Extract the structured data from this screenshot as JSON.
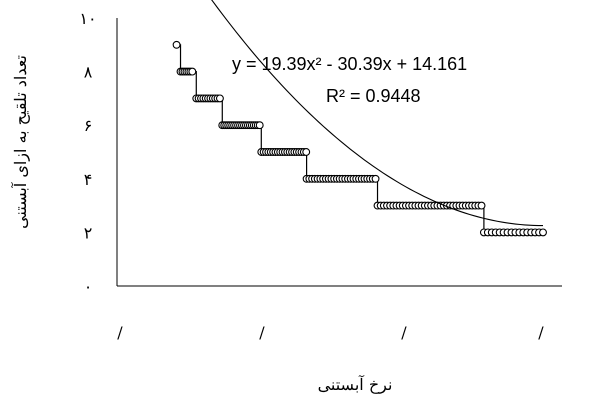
{
  "chart_data": {
    "type": "scatter",
    "title": "",
    "xlabel": "نرخ آبستنی",
    "ylabel": "تعداد تلقیح به ازای آبستنی",
    "ylim": [
      0,
      10
    ],
    "xlim": [
      0,
      1
    ],
    "y_ticks": [
      "۰",
      "۲",
      "۴",
      "۶",
      "۸",
      "۱۰"
    ],
    "y_tick_values": [
      0,
      2,
      4,
      6,
      8,
      10
    ],
    "x_ticks": [
      "/",
      "/",
      "/",
      "/"
    ],
    "x_tick_values": [
      0,
      0.333,
      0.667,
      1.0
    ],
    "grid": false,
    "legend": "none",
    "trendline": {
      "type": "polynomial",
      "coefficients": [
        19.39,
        -30.39,
        14.161
      ],
      "equation_text": "y = 19.39x² - 30.39x + 14.161",
      "r2_text": "R² = 0.9448"
    },
    "series": [
      {
        "marker": "circle-open",
        "line": "step",
        "color": "#000000",
        "points": [
          [
            0.07,
            9.0
          ],
          [
            0.08,
            8.0
          ],
          [
            0.085,
            8.0
          ],
          [
            0.09,
            8.0
          ],
          [
            0.095,
            8.0
          ],
          [
            0.1,
            8.0
          ],
          [
            0.105,
            8.0
          ],
          [
            0.11,
            8.0
          ],
          [
            0.12,
            7.0
          ],
          [
            0.126,
            7.0
          ],
          [
            0.132,
            7.0
          ],
          [
            0.138,
            7.0
          ],
          [
            0.144,
            7.0
          ],
          [
            0.15,
            7.0
          ],
          [
            0.156,
            7.0
          ],
          [
            0.162,
            7.0
          ],
          [
            0.168,
            7.0
          ],
          [
            0.174,
            7.0
          ],
          [
            0.18,
            7.0
          ],
          [
            0.186,
            6.0
          ],
          [
            0.191,
            6.0
          ],
          [
            0.196,
            6.0
          ],
          [
            0.201,
            6.0
          ],
          [
            0.206,
            6.0
          ],
          [
            0.211,
            6.0
          ],
          [
            0.216,
            6.0
          ],
          [
            0.221,
            6.0
          ],
          [
            0.226,
            6.0
          ],
          [
            0.231,
            6.0
          ],
          [
            0.236,
            6.0
          ],
          [
            0.241,
            6.0
          ],
          [
            0.246,
            6.0
          ],
          [
            0.251,
            6.0
          ],
          [
            0.256,
            6.0
          ],
          [
            0.261,
            6.0
          ],
          [
            0.266,
            6.0
          ],
          [
            0.271,
            6.0
          ],
          [
            0.276,
            6.0
          ],
          [
            0.281,
            6.0
          ],
          [
            0.285,
            5.0
          ],
          [
            0.291,
            5.0
          ],
          [
            0.297,
            5.0
          ],
          [
            0.303,
            5.0
          ],
          [
            0.309,
            5.0
          ],
          [
            0.315,
            5.0
          ],
          [
            0.321,
            5.0
          ],
          [
            0.327,
            5.0
          ],
          [
            0.333,
            5.0
          ],
          [
            0.339,
            5.0
          ],
          [
            0.345,
            5.0
          ],
          [
            0.351,
            5.0
          ],
          [
            0.357,
            5.0
          ],
          [
            0.363,
            5.0
          ],
          [
            0.369,
            5.0
          ],
          [
            0.375,
            5.0
          ],
          [
            0.381,
            5.0
          ],
          [
            0.387,
            5.0
          ],
          [
            0.393,
            5.0
          ],
          [
            0.399,
            5.0
          ],
          [
            0.4,
            4.0
          ],
          [
            0.407,
            4.0
          ],
          [
            0.414,
            4.0
          ],
          [
            0.421,
            4.0
          ],
          [
            0.428,
            4.0
          ],
          [
            0.435,
            4.0
          ],
          [
            0.442,
            4.0
          ],
          [
            0.449,
            4.0
          ],
          [
            0.456,
            4.0
          ],
          [
            0.463,
            4.0
          ],
          [
            0.47,
            4.0
          ],
          [
            0.477,
            4.0
          ],
          [
            0.484,
            4.0
          ],
          [
            0.491,
            4.0
          ],
          [
            0.498,
            4.0
          ],
          [
            0.505,
            4.0
          ],
          [
            0.512,
            4.0
          ],
          [
            0.519,
            4.0
          ],
          [
            0.526,
            4.0
          ],
          [
            0.533,
            4.0
          ],
          [
            0.54,
            4.0
          ],
          [
            0.547,
            4.0
          ],
          [
            0.554,
            4.0
          ],
          [
            0.561,
            4.0
          ],
          [
            0.568,
            4.0
          ],
          [
            0.575,
            4.0
          ],
          [
            0.58,
            3.0
          ],
          [
            0.588,
            3.0
          ],
          [
            0.596,
            3.0
          ],
          [
            0.604,
            3.0
          ],
          [
            0.612,
            3.0
          ],
          [
            0.62,
            3.0
          ],
          [
            0.628,
            3.0
          ],
          [
            0.636,
            3.0
          ],
          [
            0.644,
            3.0
          ],
          [
            0.652,
            3.0
          ],
          [
            0.66,
            3.0
          ],
          [
            0.668,
            3.0
          ],
          [
            0.676,
            3.0
          ],
          [
            0.684,
            3.0
          ],
          [
            0.692,
            3.0
          ],
          [
            0.7,
            3.0
          ],
          [
            0.708,
            3.0
          ],
          [
            0.716,
            3.0
          ],
          [
            0.724,
            3.0
          ],
          [
            0.732,
            3.0
          ],
          [
            0.74,
            3.0
          ],
          [
            0.748,
            3.0
          ],
          [
            0.756,
            3.0
          ],
          [
            0.764,
            3.0
          ],
          [
            0.772,
            3.0
          ],
          [
            0.78,
            3.0
          ],
          [
            0.788,
            3.0
          ],
          [
            0.796,
            3.0
          ],
          [
            0.804,
            3.0
          ],
          [
            0.812,
            3.0
          ],
          [
            0.82,
            3.0
          ],
          [
            0.828,
            3.0
          ],
          [
            0.836,
            3.0
          ],
          [
            0.844,
            3.0
          ],
          [
            0.85,
            2.0
          ],
          [
            0.86,
            2.0
          ],
          [
            0.87,
            2.0
          ],
          [
            0.88,
            2.0
          ],
          [
            0.89,
            2.0
          ],
          [
            0.9,
            2.0
          ],
          [
            0.91,
            2.0
          ],
          [
            0.92,
            2.0
          ],
          [
            0.93,
            2.0
          ],
          [
            0.94,
            2.0
          ],
          [
            0.95,
            2.0
          ],
          [
            0.96,
            2.0
          ],
          [
            0.97,
            2.0
          ],
          [
            0.98,
            2.0
          ],
          [
            0.99,
            2.0
          ],
          [
            1.0,
            2.0
          ]
        ]
      }
    ]
  }
}
